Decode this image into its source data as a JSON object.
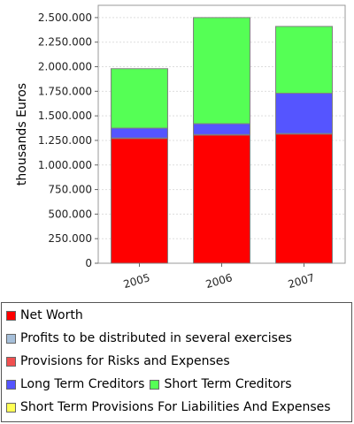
{
  "chart_data": {
    "type": "bar",
    "stacked": true,
    "ylabel": "thousands Euros",
    "ylim": [
      0,
      2625000
    ],
    "yticks": [
      0,
      250000,
      500000,
      750000,
      1000000,
      1250000,
      1500000,
      1750000,
      2000000,
      2250000,
      2500000
    ],
    "ytick_labels": [
      "0",
      "250.000",
      "500.000",
      "750.000",
      "1.000.000",
      "1.250.000",
      "1.500.000",
      "1.750.000",
      "2.000.000",
      "2.250.000",
      "2.500.000"
    ],
    "categories": [
      "2005",
      "2006",
      "2007"
    ],
    "grid": true,
    "legend_position": "bottom",
    "series": [
      {
        "name": "Net Worth",
        "color": "#ff0000",
        "values": [
          1270000,
          1305000,
          1315000
        ]
      },
      {
        "name": "Profits to be distributed in several exercises",
        "color": "#a6bfd9",
        "values": [
          0,
          0,
          0
        ]
      },
      {
        "name": "Provisions for Risks and Expenses",
        "color": "#f05050",
        "values": [
          5000,
          5000,
          5000
        ]
      },
      {
        "name": "Long Term Creditors",
        "color": "#5555ff",
        "values": [
          100000,
          110000,
          410000
        ]
      },
      {
        "name": "Short Term Creditors",
        "color": "#55ff55",
        "values": [
          605000,
          1080000,
          680000
        ]
      },
      {
        "name": "Short Term Provisions For Liabilities And Expenses",
        "color": "#ffff55",
        "values": [
          0,
          0,
          0
        ]
      }
    ]
  },
  "legend_rows": [
    [
      0
    ],
    [
      1
    ],
    [
      2
    ],
    [
      3,
      4
    ],
    [
      5
    ]
  ]
}
